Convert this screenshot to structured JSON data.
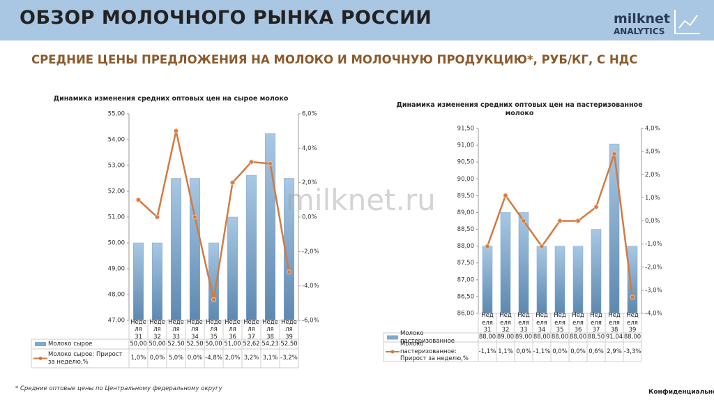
{
  "header": {
    "title": "ОБЗОР МОЛОЧНОГО РЫНКА РОССИИ",
    "logo": "milknet",
    "logo_sub": "ANALYTICS",
    "subtitle": "СРЕДНИЕ ЦЕНЫ ПРЕДЛОЖЕНИЯ НА МОЛОКО И МОЛОЧНУЮ ПРОДУКЦИЮ*, РУБ/КГ, С НДС"
  },
  "watermark": "milknet.ru",
  "footnote": "* Средние оптовые цены по Центральному федеральному округу",
  "confidential": "Конфиденциально",
  "chart_data": [
    {
      "type": "bar-line",
      "title": "Динамика изменения средних оптовых цен на сырое молоко",
      "categories": [
        "Неделя 31",
        "Неделя 32",
        "Неделя 33",
        "Неделя 34",
        "Неделя 35",
        "Неделя 36",
        "Неделя 37",
        "Неделя 38",
        "Неделя 39"
      ],
      "series": [
        {
          "name": "Молоко сырое",
          "color": "#7ea9cf",
          "values": [
            50,
            50,
            52.5,
            52.5,
            50,
            51,
            52.62,
            54.23,
            52.5
          ],
          "value_labels": [
            "50,00",
            "50,00",
            "52,50",
            "52,50",
            "50,00",
            "51,00",
            "52,62",
            "54,23",
            "52,50"
          ]
        },
        {
          "name": "Молоко сырое: Прирост за неделю,%",
          "color": "#d47a3e",
          "axis": "y2",
          "values": [
            1.0,
            0.0,
            5.0,
            0.0,
            -4.8,
            2.0,
            3.2,
            3.1,
            -3.2
          ],
          "value_labels": [
            "1,0%",
            "0,0%",
            "5,0%",
            "0,0%",
            "-4,8%",
            "2,0%",
            "3,2%",
            "3,1%",
            "-3,2%"
          ]
        }
      ],
      "ylim": [
        47,
        55
      ],
      "yticks": [
        {
          "value": 47,
          "label": "47,00"
        },
        {
          "value": 48,
          "label": "48,00"
        },
        {
          "value": 49,
          "label": "49,00"
        },
        {
          "value": 50,
          "label": "50,00"
        },
        {
          "value": 51,
          "label": "51,00"
        },
        {
          "value": 52,
          "label": "52,00"
        },
        {
          "value": 53,
          "label": "53,00"
        },
        {
          "value": 54,
          "label": "54,00"
        },
        {
          "value": 55,
          "label": "55,00"
        }
      ],
      "y2lim": [
        -6,
        6
      ],
      "y2ticks": [
        {
          "value": -6,
          "label": "-6,0%"
        },
        {
          "value": -4,
          "label": "-4,0%"
        },
        {
          "value": -2,
          "label": "-2,0%"
        },
        {
          "value": 0,
          "label": "0,0%"
        },
        {
          "value": 2,
          "label": "2,0%"
        },
        {
          "value": 4,
          "label": "4,0%"
        },
        {
          "value": 6,
          "label": "6,0%"
        }
      ],
      "grid": false
    },
    {
      "type": "bar-line",
      "title": "Динамика изменения средних оптовых цен на пастеризованное молоко",
      "categories": [
        "Неделя 31",
        "Неделя 32",
        "Неделя 33",
        "Неделя 34",
        "Неделя 35",
        "Неделя 36",
        "Неделя 37",
        "Неделя 38",
        "Неделя 39"
      ],
      "series": [
        {
          "name": "Молоко пастеризованное",
          "color": "#7ea9cf",
          "values": [
            88,
            89,
            89,
            88,
            88,
            88,
            88.5,
            91.04,
            88
          ],
          "value_labels": [
            "88,00",
            "89,00",
            "89,00",
            "88,00",
            "88,00",
            "88,00",
            "88,50",
            "91,04",
            "88,00"
          ]
        },
        {
          "name": "Молоко пастеризованное: Прирост за неделю,%",
          "color": "#d47a3e",
          "axis": "y2",
          "values": [
            -1.1,
            1.1,
            0.0,
            -1.1,
            0.0,
            0.0,
            0.6,
            2.9,
            -3.3
          ],
          "value_labels": [
            "-1,1%",
            "1,1%",
            "0,0%",
            "-1,1%",
            "0,0%",
            "0,0%",
            "0,6%",
            "2,9%",
            "-3,3%"
          ]
        }
      ],
      "ylim": [
        86,
        91.5
      ],
      "yticks": [
        {
          "value": 86,
          "label": "86,00"
        },
        {
          "value": 86.5,
          "label": "86,50"
        },
        {
          "value": 87,
          "label": "87,00"
        },
        {
          "value": 87.5,
          "label": "87,50"
        },
        {
          "value": 88,
          "label": "88,00"
        },
        {
          "value": 88.5,
          "label": "88,50"
        },
        {
          "value": 89,
          "label": "89,00"
        },
        {
          "value": 89.5,
          "label": "89,50"
        },
        {
          "value": 90,
          "label": "90,00"
        },
        {
          "value": 90.5,
          "label": "90,50"
        },
        {
          "value": 91,
          "label": "91,00"
        },
        {
          "value": 91.5,
          "label": "91,50"
        }
      ],
      "y2lim": [
        -4,
        4
      ],
      "y2ticks": [
        {
          "value": -4,
          "label": "-4,0%"
        },
        {
          "value": -3,
          "label": "-3,0%"
        },
        {
          "value": -2,
          "label": "-2,0%"
        },
        {
          "value": -1,
          "label": "-1,0%"
        },
        {
          "value": 0,
          "label": "0,0%"
        },
        {
          "value": 1,
          "label": "1,0%"
        },
        {
          "value": 2,
          "label": "2,0%"
        },
        {
          "value": 3,
          "label": "3,0%"
        },
        {
          "value": 4,
          "label": "4,0%"
        }
      ],
      "grid": false
    }
  ]
}
